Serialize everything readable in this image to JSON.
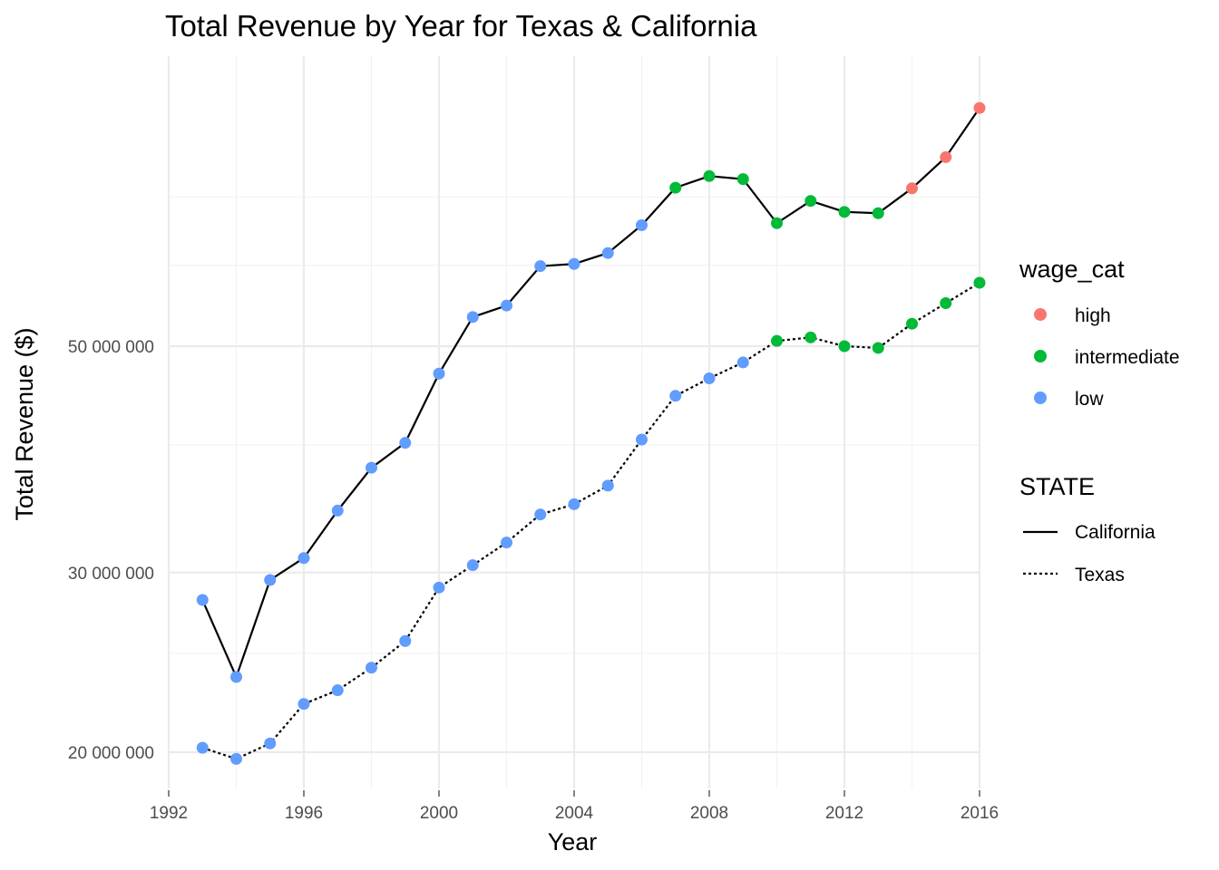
{
  "chart_data": {
    "type": "line",
    "title": "Total Revenue by Year for Texas & California",
    "xlabel": "Year",
    "ylabel": "Total Revenue ($)",
    "y_scale": "log",
    "xlim": [
      1992,
      2016
    ],
    "ylim": [
      19000000,
      77000000
    ],
    "x_ticks": [
      1992,
      1996,
      2000,
      2004,
      2008,
      2012,
      2016
    ],
    "x_tick_labels": [
      "1992",
      "1996",
      "2000",
      "2004",
      "2008",
      "2012",
      "2016"
    ],
    "y_ticks": [
      20000000,
      30000000,
      50000000
    ],
    "y_tick_labels": [
      "20 000 000",
      "30 000 000",
      "50 000 000"
    ],
    "grid": true,
    "x": [
      1993,
      1994,
      1995,
      1996,
      1997,
      1998,
      1999,
      2000,
      2001,
      2002,
      2003,
      2004,
      2005,
      2006,
      2007,
      2008,
      2009,
      2010,
      2011,
      2012,
      2013,
      2014,
      2015,
      2016
    ],
    "series": [
      {
        "name": "California",
        "linetype": "solid",
        "values": [
          28200000,
          23700000,
          29500000,
          31000000,
          34500000,
          38000000,
          40200000,
          47000000,
          53400000,
          54800000,
          59900000,
          60200000,
          61700000,
          65700000,
          71500000,
          73400000,
          72900000,
          66000000,
          69400000,
          67700000,
          67500000,
          71400000,
          76600000,
          85600000
        ],
        "wage_cat": [
          "low",
          "low",
          "low",
          "low",
          "low",
          "low",
          "low",
          "low",
          "low",
          "low",
          "low",
          "low",
          "low",
          "low",
          "intermediate",
          "intermediate",
          "intermediate",
          "intermediate",
          "intermediate",
          "intermediate",
          "intermediate",
          "high",
          "high",
          "high"
        ]
      },
      {
        "name": "Texas",
        "linetype": "dotted",
        "values": [
          20200000,
          19700000,
          20400000,
          22300000,
          23000000,
          24200000,
          25700000,
          29000000,
          30500000,
          32100000,
          34200000,
          35000000,
          36500000,
          40500000,
          44700000,
          46500000,
          48200000,
          50600000,
          51000000,
          50000000,
          49800000,
          52600000,
          55100000,
          57700000
        ],
        "wage_cat": [
          "low",
          "low",
          "low",
          "low",
          "low",
          "low",
          "low",
          "low",
          "low",
          "low",
          "low",
          "low",
          "low",
          "low",
          "low",
          "low",
          "low",
          "intermediate",
          "intermediate",
          "intermediate",
          "intermediate",
          "intermediate",
          "intermediate",
          "intermediate"
        ]
      }
    ],
    "legends": [
      {
        "title": "wage_cat",
        "entries": [
          {
            "label": "high",
            "color": "#F8766D"
          },
          {
            "label": "intermediate",
            "color": "#00BA38"
          },
          {
            "label": "low",
            "color": "#619CFF"
          }
        ]
      },
      {
        "title": "STATE",
        "entries": [
          {
            "label": "California",
            "linetype": "solid"
          },
          {
            "label": "Texas",
            "linetype": "dotted"
          }
        ]
      }
    ],
    "legend_position": "right"
  }
}
